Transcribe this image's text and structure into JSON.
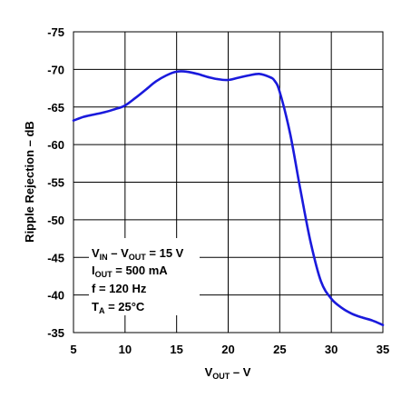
{
  "chart_data": {
    "type": "line",
    "title": "",
    "xlabel": {
      "main": "V",
      "sub": "OUT",
      "tail": " – V"
    },
    "ylabel": "Ripple Rejection – dB",
    "xlim": [
      5,
      35
    ],
    "ylim": [
      -35,
      -75
    ],
    "x_ticks": [
      "5",
      "10",
      "15",
      "20",
      "25",
      "30",
      "35"
    ],
    "y_ticks": [
      "-75",
      "-70",
      "-65",
      "-60",
      "-55",
      "-50",
      "-45",
      "-40",
      "-35"
    ],
    "grid": true,
    "series": [
      {
        "color": "#1a1adc",
        "x": [
          5,
          6,
          7,
          8,
          9,
          10,
          11,
          12,
          13,
          14,
          15,
          16,
          17,
          18,
          19,
          20,
          21,
          22,
          23,
          24,
          24.5,
          25,
          26,
          27,
          28,
          29,
          30,
          31,
          32,
          33,
          34,
          35
        ],
        "y": [
          -63.2,
          -63.7,
          -64.0,
          -64.3,
          -64.7,
          -65.2,
          -66.2,
          -67.3,
          -68.4,
          -69.2,
          -69.7,
          -69.7,
          -69.4,
          -69.0,
          -68.7,
          -68.6,
          -68.9,
          -69.2,
          -69.4,
          -69.0,
          -68.5,
          -67.0,
          -61.5,
          -54.0,
          -47.0,
          -41.8,
          -39.5,
          -38.3,
          -37.5,
          -37.0,
          -36.6,
          -36.0
        ]
      }
    ],
    "annotation": [
      {
        "main": "V",
        "sub": "IN",
        "mid": " – V",
        "sub2": "OUT",
        "tail": " = 15 V"
      },
      {
        "main": "I",
        "sub": "OUT",
        "tail": " = 500 mA"
      },
      {
        "main": "f = 120 Hz",
        "sub": "",
        "tail": ""
      },
      {
        "main": "T",
        "sub": "A",
        "tail": " = 25°C"
      }
    ]
  }
}
